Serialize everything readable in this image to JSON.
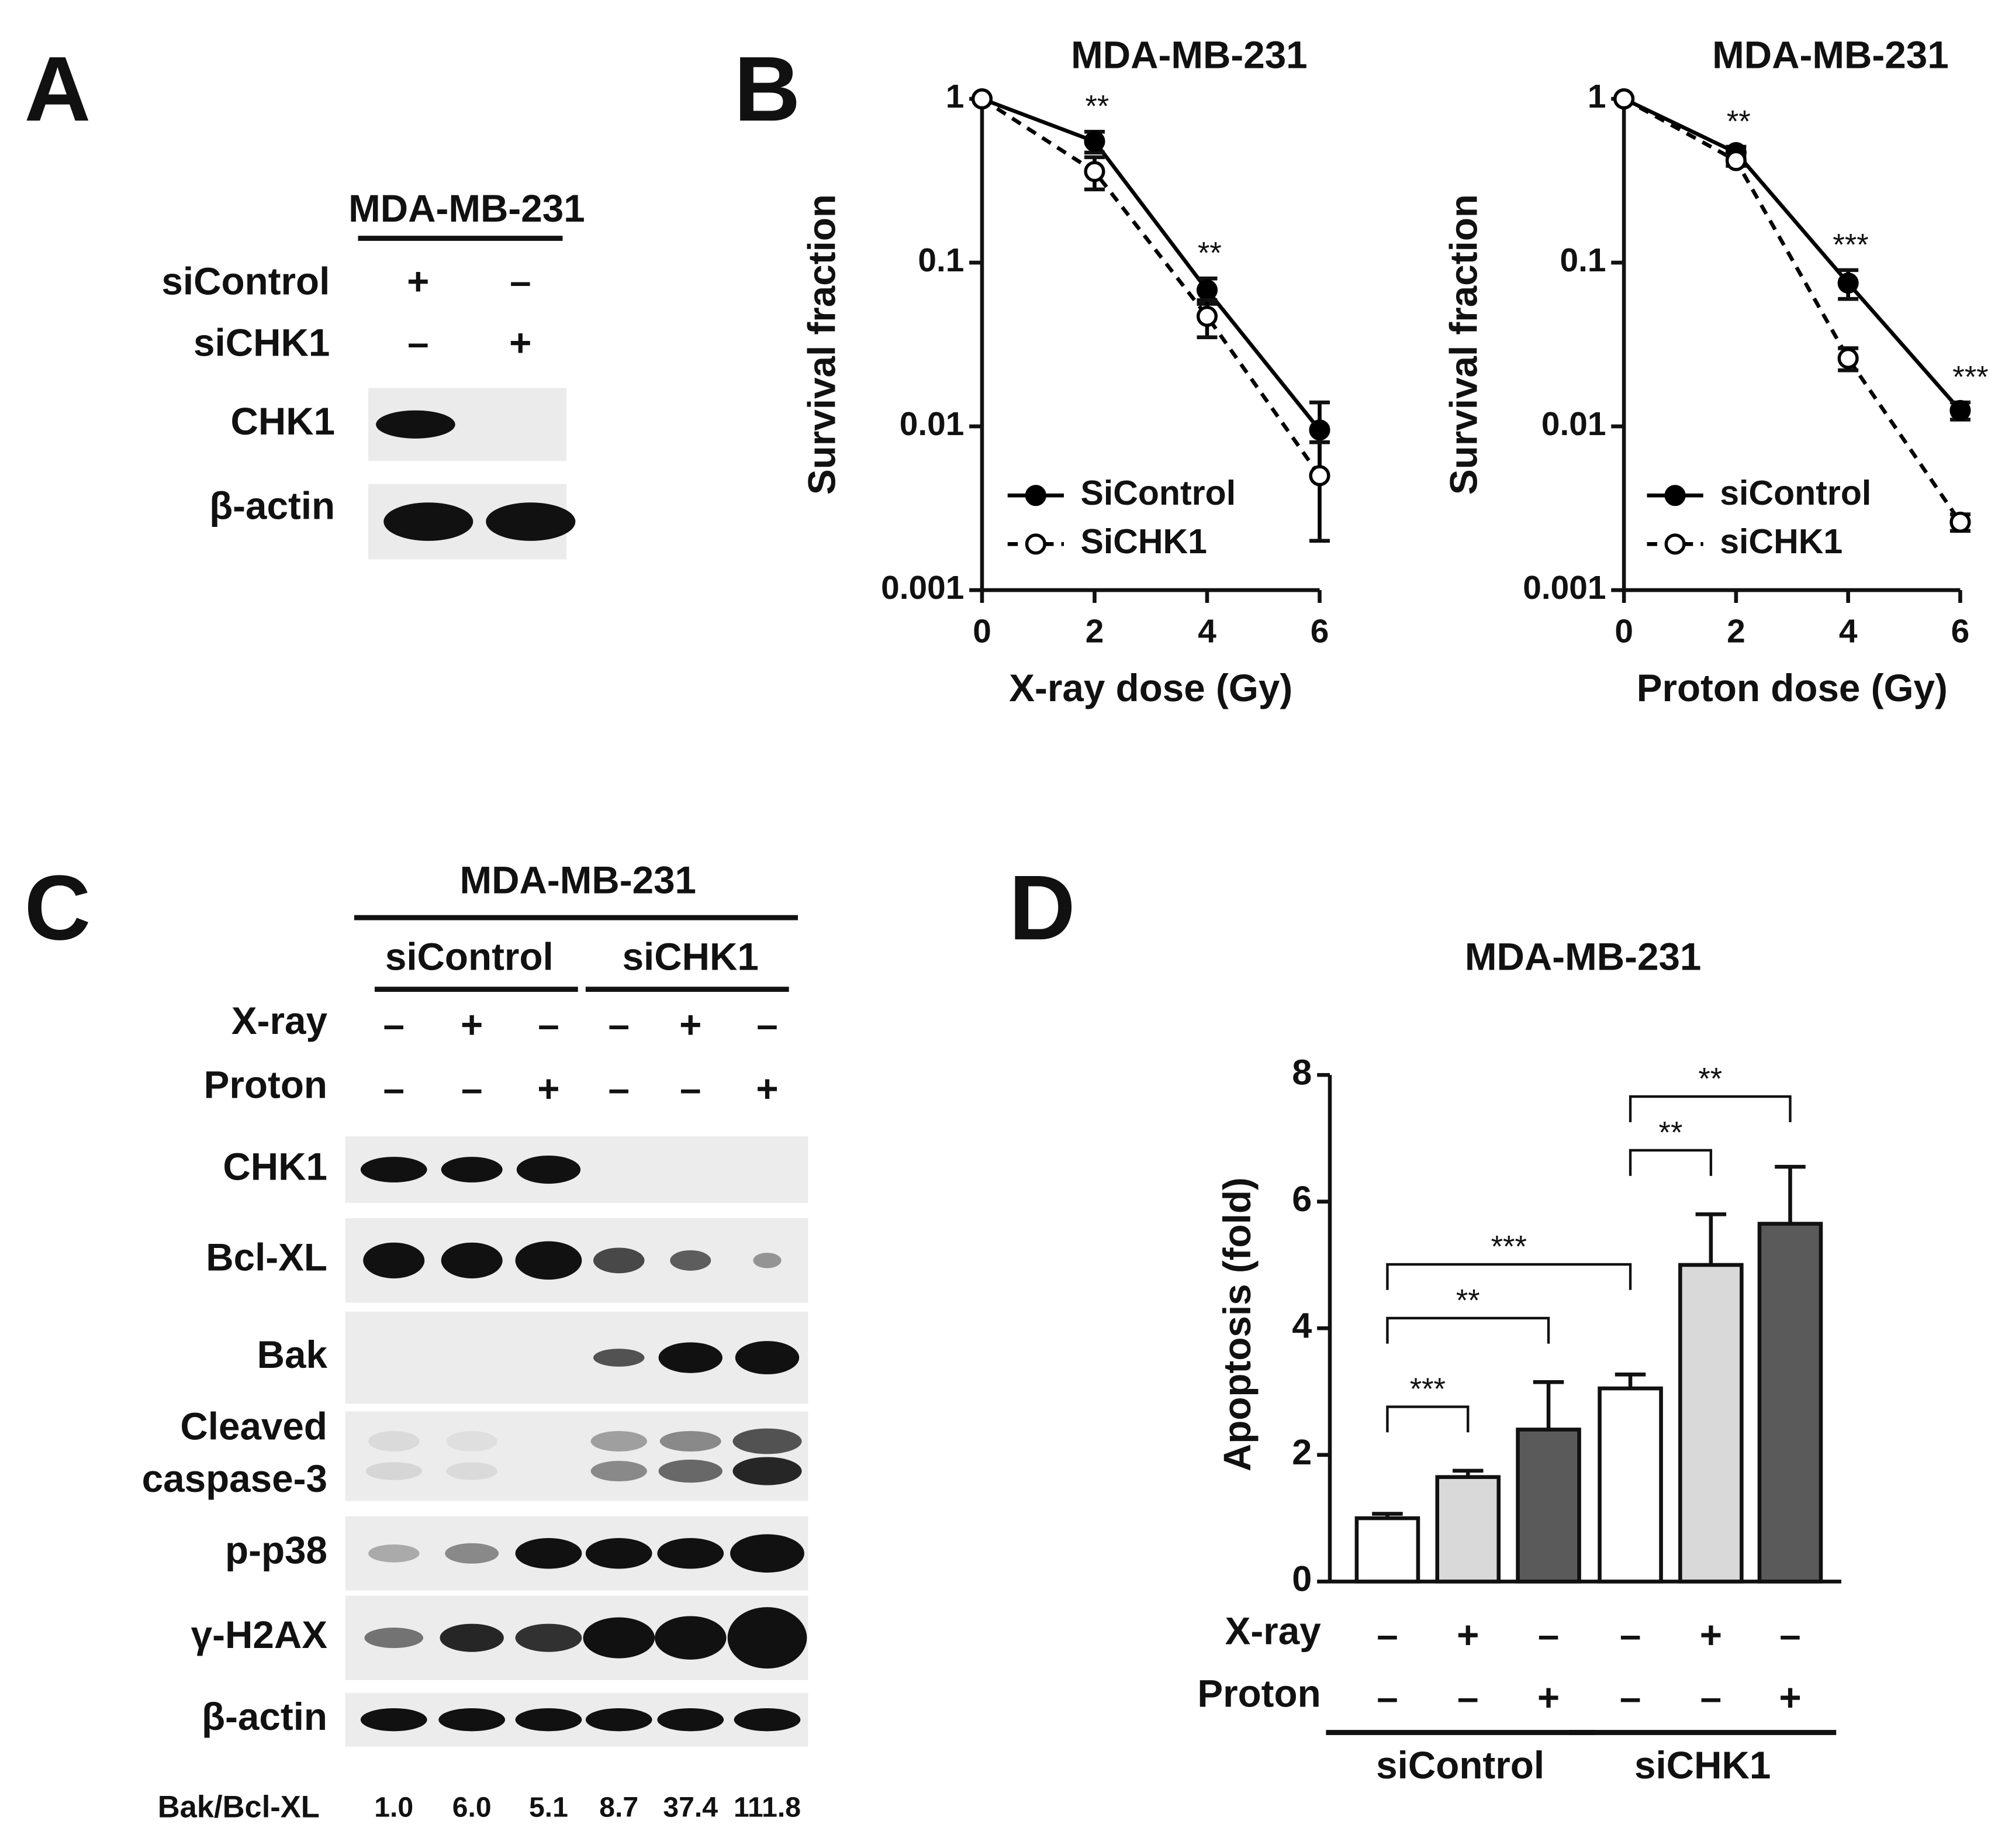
{
  "figure": {
    "panel_a": {
      "letter": "A",
      "cell_line": "MDA-MB-231",
      "conditions": [
        {
          "label": "siControl",
          "marks": [
            "+",
            "–"
          ]
        },
        {
          "label": "siCHK1",
          "marks": [
            "–",
            "+"
          ]
        }
      ],
      "blots": [
        "CHK1",
        "β-actin"
      ]
    },
    "panel_b": {
      "letter": "B"
    },
    "panel_c": {
      "letter": "C",
      "cell_line": "MDA-MB-231",
      "groups": [
        "siControl",
        "siCHK1"
      ],
      "treatments": [
        {
          "label": "X-ray",
          "marks": [
            "–",
            "+",
            "–",
            "–",
            "+",
            "–"
          ]
        },
        {
          "label": "Proton",
          "marks": [
            "–",
            "–",
            "+",
            "–",
            "–",
            "+"
          ]
        }
      ],
      "blots": [
        [
          "CHK1"
        ],
        [
          "Bcl-XL"
        ],
        [
          "Bak"
        ],
        [
          "Cleaved",
          "caspase-3"
        ],
        [
          "p-p38"
        ],
        [
          "γ-H2AX"
        ],
        [
          "β-actin"
        ]
      ],
      "ratio_label": "Bak/Bcl-XL",
      "ratios": [
        "1.0",
        "6.0",
        "5.1",
        "8.7",
        "37.4",
        "111.8"
      ]
    },
    "panel_d": {
      "letter": "D"
    }
  },
  "chart_data": [
    {
      "type": "line",
      "title": "MDA-MB-231",
      "xlabel": "X-ray dose (Gy)",
      "ylabel": "Survival fraction",
      "x": [
        0,
        2,
        4,
        6
      ],
      "xlim": [
        0,
        6
      ],
      "xticks": [
        0,
        2,
        4,
        6
      ],
      "ylim": [
        0.001,
        1
      ],
      "yticks": [
        0.001,
        0.01,
        0.1,
        1
      ],
      "log_y": true,
      "series": [
        {
          "name": "SiControl",
          "color": "#000000",
          "line_style": "solid",
          "marker": "filled",
          "values": [
            1,
            0.55,
            0.068,
            0.0095
          ],
          "errors": [
            0,
            0.08,
            0.012,
            0.0045
          ]
        },
        {
          "name": "SiCHK1",
          "color": "#000000",
          "line_style": "dashed",
          "marker": "open",
          "values": [
            1,
            0.36,
            0.047,
            0.005
          ],
          "errors": [
            0,
            0.08,
            0.012,
            0.003
          ]
        }
      ],
      "annotations": [
        {
          "x": 2,
          "label": "**"
        },
        {
          "x": 4,
          "label": "**"
        }
      ]
    },
    {
      "type": "line",
      "title": "MDA-MB-231",
      "xlabel": "Proton dose (Gy)",
      "ylabel": "Survival fraction",
      "x": [
        0,
        2,
        4,
        6
      ],
      "xlim": [
        0,
        6
      ],
      "xticks": [
        0,
        2,
        4,
        6
      ],
      "ylim": [
        0.001,
        1
      ],
      "yticks": [
        0.001,
        0.01,
        0.1,
        1
      ],
      "log_y": true,
      "series": [
        {
          "name": "siControl",
          "color": "#000000",
          "line_style": "solid",
          "marker": "filled",
          "values": [
            1,
            0.47,
            0.075,
            0.0125
          ],
          "errors": [
            0,
            0.04,
            0.015,
            0.0015
          ]
        },
        {
          "name": "siCHK1",
          "color": "#000000",
          "line_style": "dashed",
          "marker": "open",
          "values": [
            1,
            0.42,
            0.026,
            0.0026
          ],
          "errors": [
            0,
            0.03,
            0.004,
            0.0003
          ]
        }
      ],
      "annotations": [
        {
          "x": 2,
          "label": "**"
        },
        {
          "x": 4,
          "label": "***"
        },
        {
          "x": 6,
          "label": "***"
        }
      ]
    },
    {
      "type": "bar",
      "title": "MDA-MB-231",
      "ylabel": "Apoptosis (fold)",
      "values": [
        1.0,
        1.65,
        2.4,
        3.05,
        5.0,
        5.65
      ],
      "errors": [
        0.07,
        0.1,
        0.75,
        0.22,
        0.8,
        0.9
      ],
      "colors": [
        "#ffffff",
        "#d9d9d9",
        "#5a5a5a",
        "#ffffff",
        "#d9d9d9",
        "#5a5a5a"
      ],
      "ylim": [
        0,
        8
      ],
      "yticks": [
        0,
        2,
        4,
        6,
        8
      ],
      "treatments": [
        {
          "label": "X-ray",
          "marks": [
            "–",
            "+",
            "–",
            "–",
            "+",
            "–"
          ]
        },
        {
          "label": "Proton",
          "marks": [
            "–",
            "–",
            "+",
            "–",
            "–",
            "+"
          ]
        }
      ],
      "groups": [
        "siControl",
        "siCHK1"
      ],
      "significance": [
        {
          "from": 0,
          "to": 1,
          "label": "***"
        },
        {
          "from": 0,
          "to": 2,
          "label": "**"
        },
        {
          "from": 0,
          "to": 3,
          "label": "***"
        },
        {
          "from": 3,
          "to": 4,
          "label": "**"
        },
        {
          "from": 3,
          "to": 5,
          "label": "**"
        }
      ]
    }
  ]
}
